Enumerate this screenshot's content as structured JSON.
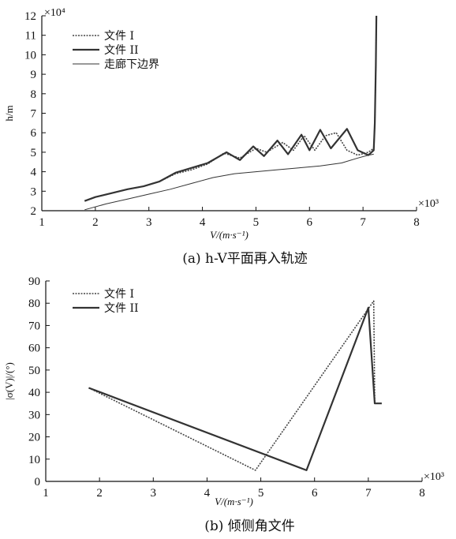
{
  "chart_data": [
    {
      "type": "line",
      "caption": "(a) h-V平面再入轨迹",
      "xlabel": "V/(m·s⁻¹)",
      "ylabel": "h/m",
      "x_multiplier": "×10³",
      "y_multiplier": "×10⁴",
      "xlim": [
        1,
        8
      ],
      "ylim": [
        2,
        12
      ],
      "xticks": [
        "1",
        "2",
        "3",
        "4",
        "5",
        "6",
        "7",
        "8"
      ],
      "yticks": [
        "2",
        "3",
        "4",
        "5",
        "6",
        "7",
        "8",
        "9",
        "10",
        "11",
        "12"
      ],
      "legend_position": "top-left",
      "series": [
        {
          "name": "文件 I",
          "style": "dotted",
          "x": [
            1.8,
            2.0,
            2.3,
            2.6,
            2.9,
            3.2,
            3.5,
            3.8,
            4.1,
            4.4,
            4.7,
            5.0,
            5.2,
            5.5,
            5.7,
            5.9,
            6.1,
            6.3,
            6.5,
            6.7,
            6.9,
            7.1,
            7.2,
            7.22,
            7.24,
            7.25
          ],
          "y": [
            2.5,
            2.7,
            2.9,
            3.1,
            3.25,
            3.5,
            3.9,
            4.1,
            4.4,
            4.95,
            4.7,
            5.2,
            5.0,
            5.5,
            5.1,
            5.85,
            5.1,
            5.85,
            6.0,
            5.1,
            4.85,
            5.0,
            5.2,
            6.5,
            9.5,
            12.0
          ]
        },
        {
          "name": "文件 II",
          "style": "solid",
          "x": [
            1.8,
            2.0,
            2.3,
            2.6,
            2.9,
            3.2,
            3.5,
            3.8,
            4.1,
            4.45,
            4.7,
            4.95,
            5.15,
            5.4,
            5.6,
            5.85,
            6.0,
            6.2,
            6.4,
            6.7,
            6.9,
            7.1,
            7.2,
            7.22,
            7.24,
            7.25
          ],
          "y": [
            2.5,
            2.7,
            2.9,
            3.1,
            3.25,
            3.5,
            3.95,
            4.2,
            4.45,
            5.0,
            4.6,
            5.3,
            4.8,
            5.6,
            4.9,
            5.9,
            5.1,
            6.15,
            5.2,
            6.2,
            5.1,
            4.85,
            5.1,
            6.5,
            9.5,
            12.0
          ]
        },
        {
          "name": "走廊下边界",
          "style": "thin",
          "x": [
            1.8,
            2.2,
            2.6,
            3.0,
            3.4,
            3.8,
            4.2,
            4.6,
            5.0,
            5.4,
            5.8,
            6.2,
            6.6,
            6.9,
            7.1,
            7.2
          ],
          "y": [
            2.05,
            2.35,
            2.6,
            2.85,
            3.1,
            3.4,
            3.7,
            3.9,
            4.0,
            4.1,
            4.2,
            4.3,
            4.45,
            4.7,
            4.85,
            4.9
          ]
        }
      ]
    },
    {
      "type": "line",
      "caption": "(b) 倾侧角文件",
      "xlabel": "V/(m·s⁻¹)",
      "ylabel": "|σ(V)|/(°)",
      "x_multiplier": "×10³",
      "xlim": [
        1,
        8
      ],
      "ylim": [
        0,
        90
      ],
      "xticks": [
        "1",
        "2",
        "3",
        "4",
        "5",
        "6",
        "7",
        "8"
      ],
      "yticks": [
        "0",
        "10",
        "20",
        "30",
        "40",
        "50",
        "60",
        "70",
        "80",
        "90"
      ],
      "legend_position": "top-left",
      "series": [
        {
          "name": "文件 I",
          "style": "dotted",
          "x": [
            1.8,
            4.9,
            7.1,
            7.12,
            7.25
          ],
          "y": [
            42,
            5,
            81,
            35,
            35
          ]
        },
        {
          "name": "文件 II",
          "style": "solid",
          "x": [
            1.8,
            5.85,
            7.0,
            7.12,
            7.25
          ],
          "y": [
            42,
            5,
            78,
            35,
            35
          ]
        }
      ]
    }
  ]
}
